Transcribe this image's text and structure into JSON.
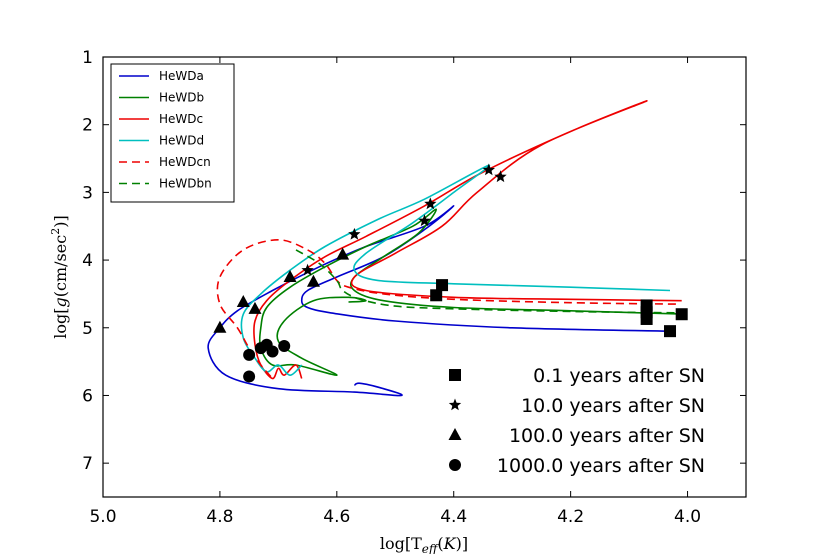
{
  "chart_data": {
    "type": "line",
    "title": "",
    "xlabel": "log[T_eff(K)]",
    "ylabel": "log[g(cm/sec^2)]",
    "xlim": [
      5.0,
      3.9
    ],
    "ylim": [
      7.5,
      1.0
    ],
    "x_ticks": [
      "5.0",
      "4.8",
      "4.6",
      "4.4",
      "4.2",
      "4.0"
    ],
    "x_tick_values": [
      5.0,
      4.8,
      4.6,
      4.4,
      4.2,
      4.0
    ],
    "y_ticks": [
      "1",
      "2",
      "3",
      "4",
      "5",
      "6",
      "7"
    ],
    "y_tick_values": [
      1,
      2,
      3,
      4,
      5,
      6,
      7
    ],
    "legend": [
      {
        "label": "HeWDa",
        "color": "#0000cc",
        "dash": "solid"
      },
      {
        "label": "HeWDb",
        "color": "#008000",
        "dash": "solid"
      },
      {
        "label": "HeWDc",
        "color": "#ee0000",
        "dash": "solid"
      },
      {
        "label": "HeWDd",
        "color": "#00bfbf",
        "dash": "solid"
      },
      {
        "label": "HeWDcn",
        "color": "#ee0000",
        "dash": "dashed"
      },
      {
        "label": "HeWDbn",
        "color": "#008000",
        "dash": "dashed"
      }
    ],
    "series": [
      {
        "name": "HeWDa",
        "color": "#0000cc",
        "dash": "solid",
        "points": [
          [
            4.03,
            5.05
          ],
          [
            4.3,
            5.0
          ],
          [
            4.5,
            4.9
          ],
          [
            4.61,
            4.78
          ],
          [
            4.65,
            4.7
          ],
          [
            4.66,
            4.6
          ],
          [
            4.65,
            4.45
          ],
          [
            4.6,
            4.25
          ],
          [
            4.52,
            3.95
          ],
          [
            4.45,
            3.55
          ],
          [
            4.4,
            3.2
          ],
          [
            4.45,
            3.5
          ],
          [
            4.55,
            3.8
          ],
          [
            4.63,
            4.1
          ],
          [
            4.71,
            4.45
          ],
          [
            4.77,
            4.75
          ],
          [
            4.8,
            5.0
          ],
          [
            4.82,
            5.3
          ],
          [
            4.79,
            5.7
          ],
          [
            4.7,
            5.9
          ],
          [
            4.57,
            5.95
          ],
          [
            4.49,
            6.0
          ],
          [
            4.52,
            5.9
          ],
          [
            4.56,
            5.82
          ],
          [
            4.57,
            5.85
          ]
        ]
      },
      {
        "name": "HeWDb",
        "color": "#008000",
        "dash": "solid",
        "points": [
          [
            4.0,
            4.8
          ],
          [
            4.2,
            4.75
          ],
          [
            4.4,
            4.7
          ],
          [
            4.52,
            4.6
          ],
          [
            4.57,
            4.45
          ],
          [
            4.57,
            4.25
          ],
          [
            4.52,
            3.95
          ],
          [
            4.46,
            3.6
          ],
          [
            4.43,
            3.25
          ],
          [
            4.47,
            3.5
          ],
          [
            4.55,
            3.8
          ],
          [
            4.62,
            4.1
          ],
          [
            4.68,
            4.4
          ],
          [
            4.72,
            4.7
          ],
          [
            4.73,
            5.0
          ],
          [
            4.73,
            5.3
          ],
          [
            4.71,
            5.55
          ],
          [
            4.67,
            5.55
          ],
          [
            4.6,
            5.7
          ],
          [
            4.66,
            5.45
          ],
          [
            4.7,
            5.2
          ],
          [
            4.69,
            4.9
          ],
          [
            4.64,
            4.6
          ],
          [
            4.58,
            4.55
          ],
          [
            4.55,
            4.6
          ],
          [
            4.58,
            4.62
          ]
        ]
      },
      {
        "name": "HeWDc",
        "color": "#ee0000",
        "dash": "solid",
        "points": [
          [
            4.01,
            4.6
          ],
          [
            4.2,
            4.58
          ],
          [
            4.4,
            4.55
          ],
          [
            4.55,
            4.45
          ],
          [
            4.57,
            4.25
          ],
          [
            4.5,
            3.9
          ],
          [
            4.42,
            3.5
          ],
          [
            4.36,
            3.0
          ],
          [
            4.25,
            2.3
          ],
          [
            4.07,
            1.65
          ],
          [
            4.2,
            2.1
          ],
          [
            4.35,
            2.7
          ],
          [
            4.45,
            3.2
          ],
          [
            4.55,
            3.65
          ],
          [
            4.62,
            3.95
          ],
          [
            4.68,
            4.3
          ],
          [
            4.72,
            4.6
          ],
          [
            4.74,
            4.9
          ],
          [
            4.74,
            5.25
          ],
          [
            4.73,
            5.55
          ],
          [
            4.71,
            5.75
          ],
          [
            4.7,
            5.6
          ],
          [
            4.69,
            5.7
          ],
          [
            4.67,
            5.55
          ],
          [
            4.66,
            5.75
          ]
        ]
      },
      {
        "name": "HeWDd",
        "color": "#00bfbf",
        "dash": "solid",
        "points": [
          [
            4.03,
            4.45
          ],
          [
            4.2,
            4.4
          ],
          [
            4.4,
            4.35
          ],
          [
            4.53,
            4.3
          ],
          [
            4.57,
            4.15
          ],
          [
            4.55,
            3.9
          ],
          [
            4.47,
            3.45
          ],
          [
            4.4,
            3.0
          ],
          [
            4.34,
            2.6
          ],
          [
            4.45,
            3.1
          ],
          [
            4.53,
            3.4
          ],
          [
            4.62,
            3.8
          ],
          [
            4.68,
            4.15
          ],
          [
            4.73,
            4.5
          ],
          [
            4.76,
            4.8
          ],
          [
            4.76,
            5.15
          ],
          [
            4.74,
            5.45
          ],
          [
            4.72,
            5.65
          ],
          [
            4.7,
            5.55
          ],
          [
            4.68,
            5.7
          ],
          [
            4.66,
            5.55
          ]
        ]
      },
      {
        "name": "HeWDcn",
        "color": "#ee0000",
        "dash": "dashed",
        "points": [
          [
            4.02,
            4.65
          ],
          [
            4.2,
            4.63
          ],
          [
            4.4,
            4.58
          ],
          [
            4.52,
            4.5
          ],
          [
            4.58,
            4.4
          ],
          [
            4.6,
            4.3
          ],
          [
            4.62,
            4.05
          ],
          [
            4.65,
            3.85
          ],
          [
            4.7,
            3.7
          ],
          [
            4.76,
            3.85
          ],
          [
            4.8,
            4.25
          ],
          [
            4.8,
            4.65
          ],
          [
            4.77,
            5.0
          ],
          [
            4.75,
            5.3
          ],
          [
            4.73,
            5.55
          ],
          [
            4.71,
            5.75
          ]
        ]
      },
      {
        "name": "HeWDbn",
        "color": "#008000",
        "dash": "dashed",
        "points": [
          [
            4.0,
            4.78
          ],
          [
            4.2,
            4.76
          ],
          [
            4.4,
            4.72
          ],
          [
            4.5,
            4.68
          ],
          [
            4.56,
            4.58
          ],
          [
            4.59,
            4.45
          ],
          [
            4.6,
            4.3
          ],
          [
            4.63,
            4.05
          ],
          [
            4.67,
            3.85
          ]
        ]
      }
    ],
    "markers": {
      "square": {
        "label": "0.1 years after SN",
        "points": [
          [
            4.03,
            5.05
          ],
          [
            4.07,
            4.87
          ],
          [
            4.07,
            4.77
          ],
          [
            4.07,
            4.67
          ],
          [
            4.01,
            4.8
          ],
          [
            4.43,
            4.52
          ],
          [
            4.42,
            4.37
          ]
        ]
      },
      "star": {
        "label": "10.0 years after SN",
        "points": [
          [
            4.32,
            2.77
          ],
          [
            4.34,
            2.67
          ],
          [
            4.44,
            3.17
          ],
          [
            4.45,
            3.42
          ],
          [
            4.57,
            3.62
          ],
          [
            4.65,
            4.15
          ]
        ]
      },
      "triangle": {
        "label": "100.0 years after SN",
        "points": [
          [
            4.8,
            5.0
          ],
          [
            4.76,
            4.62
          ],
          [
            4.74,
            4.72
          ],
          [
            4.68,
            4.25
          ],
          [
            4.64,
            4.32
          ],
          [
            4.59,
            3.92
          ]
        ]
      },
      "circle": {
        "label": "1000.0 years after SN",
        "points": [
          [
            4.75,
            5.4
          ],
          [
            4.75,
            5.72
          ],
          [
            4.72,
            5.25
          ],
          [
            4.71,
            5.35
          ],
          [
            4.69,
            5.27
          ],
          [
            4.73,
            5.3
          ]
        ]
      }
    }
  }
}
